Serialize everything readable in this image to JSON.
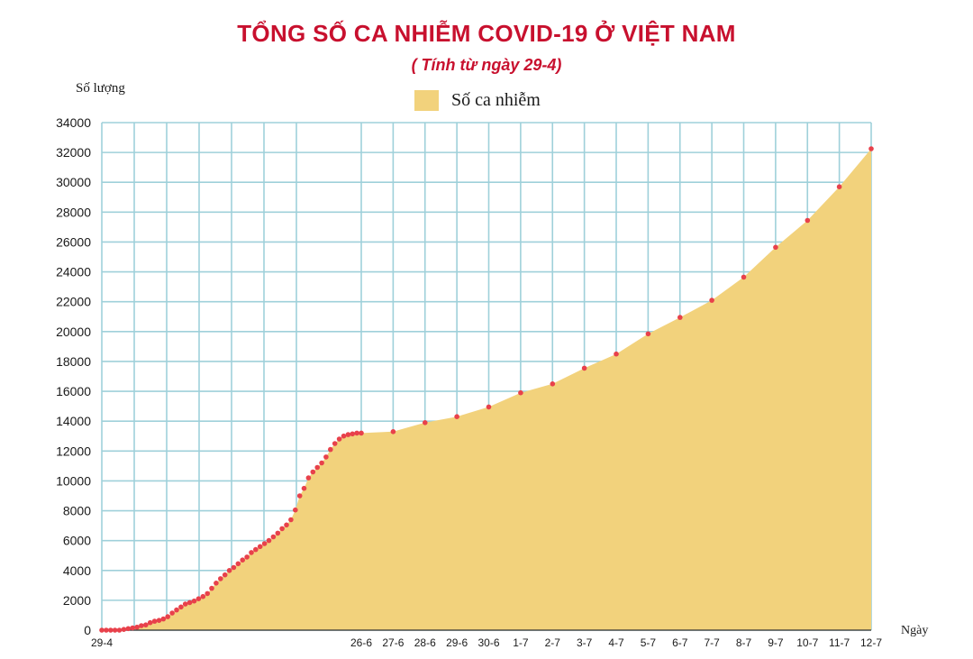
{
  "colors": {
    "title": "#c8102e",
    "area": "#f2d27c",
    "grid": "#9fd0da",
    "point": "#e8414b",
    "text": "#1a1a1a"
  },
  "chart_data": {
    "type": "area",
    "title": "TỔNG SỐ CA NHIỄM COVID-19 Ở VIỆT NAM",
    "subtitle": "( Tính từ ngày 29-4)",
    "xlabel": "Ngày",
    "ylabel": "Số lượng",
    "ylim": [
      0,
      34000
    ],
    "yticks": [
      0,
      2000,
      4000,
      6000,
      8000,
      10000,
      12000,
      14000,
      16000,
      18000,
      20000,
      22000,
      24000,
      26000,
      28000,
      30000,
      32000,
      34000
    ],
    "xtick_labels": [
      "29-4",
      "26-6",
      "27-6",
      "28-6",
      "29-6",
      "30-6",
      "1-7",
      "2-7",
      "3-7",
      "4-7",
      "5-7",
      "6-7",
      "7-7",
      "8-7",
      "9-7",
      "10-7",
      "11-7",
      "12-7"
    ],
    "legend": [
      "Số ca nhiễm"
    ],
    "legend_position": "top-center",
    "grid": true,
    "series": [
      {
        "name": "Số ca nhiễm",
        "x_axis": "day index from 29-4 (59 = 26-6, 75 = 12-7)",
        "x": [
          0,
          1,
          2,
          3,
          4,
          5,
          6,
          7,
          8,
          9,
          10,
          11,
          12,
          13,
          14,
          15,
          16,
          17,
          18,
          19,
          20,
          21,
          22,
          23,
          24,
          25,
          26,
          27,
          28,
          29,
          30,
          31,
          32,
          33,
          34,
          35,
          36,
          37,
          38,
          39,
          40,
          41,
          42,
          43,
          44,
          45,
          46,
          47,
          48,
          49,
          50,
          51,
          52,
          53,
          54,
          55,
          56,
          57,
          58,
          59,
          60,
          61,
          62,
          63,
          64,
          65,
          66,
          67,
          68,
          69,
          70,
          71,
          72,
          73,
          74,
          75
        ],
        "values": [
          0,
          0,
          0,
          0,
          0,
          50,
          100,
          150,
          200,
          300,
          350,
          500,
          600,
          650,
          750,
          900,
          1150,
          1350,
          1550,
          1750,
          1850,
          1950,
          2100,
          2250,
          2450,
          2800,
          3150,
          3450,
          3700,
          4000,
          4200,
          4450,
          4700,
          4900,
          5200,
          5400,
          5600,
          5800,
          6000,
          6250,
          6500,
          6800,
          7050,
          7400,
          8050,
          9000,
          9500,
          10200,
          10600,
          10900,
          11200,
          11600,
          12100,
          12500,
          12800,
          13000,
          13100,
          13150,
          13200,
          13200,
          13300,
          13900,
          14300,
          14950,
          15900,
          16500,
          17550,
          18500,
          19850,
          20950,
          22100,
          23650,
          25650,
          27450,
          29700,
          32250
        ]
      }
    ]
  }
}
